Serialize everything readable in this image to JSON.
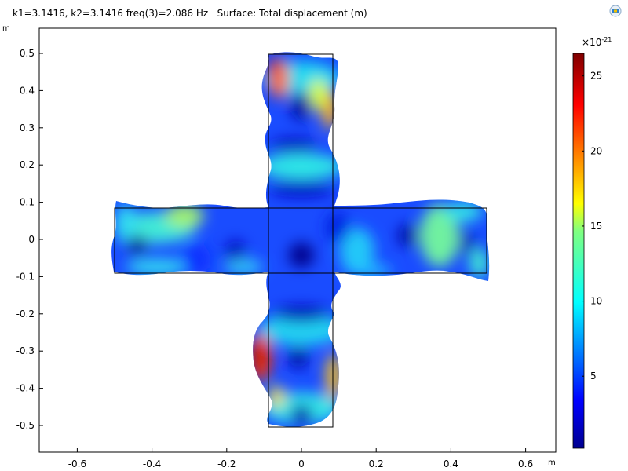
{
  "header": {
    "title": "k1=3.1416, k2=3.1416 freq(3)=2.086 Hz   Surface: Total displacement (m)",
    "y_unit": "m",
    "x_unit": "m"
  },
  "colorbar": {
    "scale_label": "×10",
    "scale_exp": "-21",
    "ticks": [
      5,
      10,
      15,
      20,
      25
    ],
    "range": [
      0.2,
      26.5
    ],
    "colormap": "rainbow"
  },
  "colors": {
    "low": "#00008f",
    "high": "#7f0000",
    "outline": "#000000"
  },
  "chart_data": {
    "type": "heatmap",
    "title": "k1=3.1416, k2=3.1416 freq(3)=2.086 Hz   Surface: Total displacement (m)",
    "xlabel": "m",
    "ylabel": "m",
    "xlim": [
      -0.7,
      0.7
    ],
    "ylim": [
      -0.57,
      0.56
    ],
    "x_ticks": [
      "-0.6",
      "-0.4",
      "-0.2",
      "0",
      "0.2",
      "0.4",
      "0.6"
    ],
    "x_tick_values": [
      -0.6,
      -0.4,
      -0.2,
      0,
      0.2,
      0.4,
      0.6
    ],
    "y_ticks": [
      "0.5",
      "0.4",
      "0.3",
      "0.2",
      "0.1",
      "0",
      "-0.1",
      "-0.2",
      "-0.3",
      "-0.4",
      "-0.5"
    ],
    "y_tick_values": [
      0.5,
      0.4,
      0.3,
      0.2,
      0.1,
      0,
      -0.1,
      -0.2,
      -0.3,
      -0.4,
      -0.5
    ],
    "geometry": {
      "vertical_arm_x": [
        -0.086,
        0.086
      ],
      "vertical_arm_y": [
        -0.5,
        0.5
      ],
      "horizontal_arm_x": [
        -0.5,
        0.5
      ],
      "horizontal_arm_y": [
        -0.088,
        0.088
      ]
    },
    "grid": false,
    "legend": "colorbar-right"
  }
}
